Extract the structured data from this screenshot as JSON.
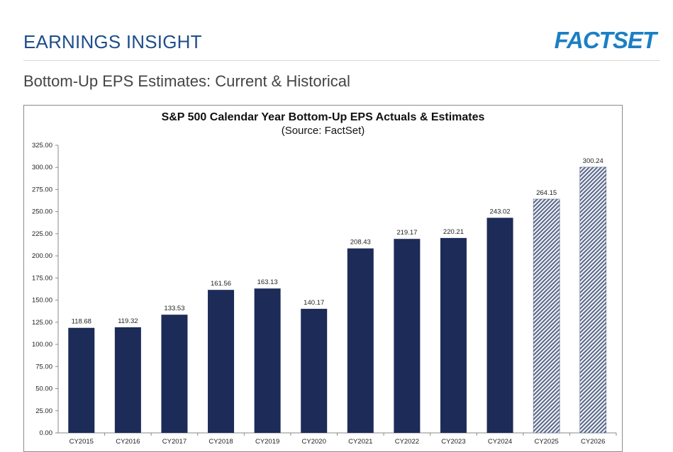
{
  "header": {
    "title": "EARNINGS INSIGHT",
    "logo_text": "FACTSET"
  },
  "subtitle": "Bottom-Up EPS Estimates: Current & Historical",
  "colors": {
    "actual_bar": "#1c2b57",
    "estimate_bar": "#5d6b8c",
    "header_blue": "#1e4e8c",
    "logo_blue": "#1b7fc4"
  },
  "chart_data": {
    "type": "bar",
    "title": "S&P 500 Calendar Year Bottom-Up EPS Actuals & Estimates",
    "source": "(Source: FactSet)",
    "categories": [
      "CY2015",
      "CY2016",
      "CY2017",
      "CY2018",
      "CY2019",
      "CY2020",
      "CY2021",
      "CY2022",
      "CY2023",
      "CY2024",
      "CY2025",
      "CY2026"
    ],
    "values": [
      118.68,
      119.32,
      133.53,
      161.56,
      163.13,
      140.17,
      208.43,
      219.17,
      220.21,
      243.02,
      264.15,
      300.24
    ],
    "data_labels": [
      "118.68",
      "119.32",
      "133.53",
      "161.56",
      "163.13",
      "140.17",
      "208.43",
      "219.17",
      "220.21",
      "243.02",
      "264.15",
      "300.24"
    ],
    "bar_style": [
      "solid",
      "solid",
      "solid",
      "solid",
      "solid",
      "solid",
      "solid",
      "solid",
      "solid",
      "solid",
      "hatched",
      "hatched"
    ],
    "ylim": [
      0,
      325
    ],
    "yticks": [
      "0.00",
      "25.00",
      "50.00",
      "75.00",
      "100.00",
      "125.00",
      "150.00",
      "175.00",
      "200.00",
      "225.00",
      "250.00",
      "275.00",
      "300.00",
      "325.00"
    ],
    "xlabel": "",
    "ylabel": "",
    "grid": false,
    "legend": "none"
  }
}
